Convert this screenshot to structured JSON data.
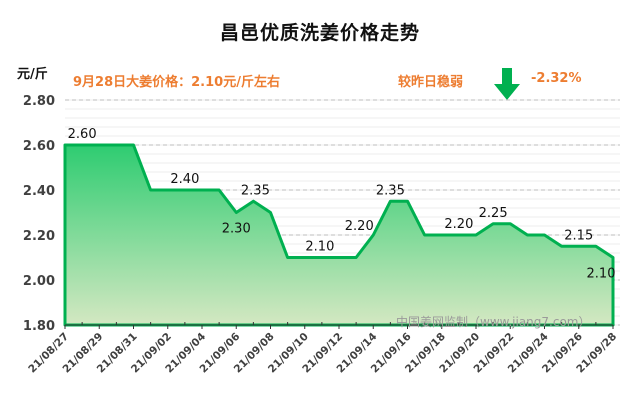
{
  "title": "昌邑优质洗姜价格走势",
  "unit": "元/斤",
  "note_left": "9月28日大姜价格：2.10元/斤左右",
  "note_right": "较昨日稳弱",
  "note_pct": "-2.32%",
  "trend_icon": "down-arrow-icon",
  "watermark": "中国姜网监制（www.jiang7.com）",
  "colors": {
    "line": "#00b050",
    "fill_top": "#2ecc71",
    "fill_bottom": "#d4e8c2",
    "accent": "#ed7d31",
    "arrow": "#00b050"
  },
  "chart_data": {
    "type": "area",
    "title": "昌邑优质洗姜价格走势",
    "xlabel": "",
    "ylabel": "元/斤",
    "ylim": [
      1.8,
      2.8
    ],
    "yticks": [
      "1.80",
      "2.00",
      "2.20",
      "2.40",
      "2.60",
      "2.80"
    ],
    "xtick_labels": [
      "21/08/27",
      "21/08/29",
      "21/08/31",
      "21/09/02",
      "21/09/04",
      "21/09/06",
      "21/09/08",
      "21/09/10",
      "21/09/12",
      "21/09/14",
      "21/09/16",
      "21/09/18",
      "21/09/20",
      "21/09/22",
      "21/09/24",
      "21/09/26",
      "21/09/28"
    ],
    "x": [
      "21/08/27",
      "21/08/28",
      "21/08/29",
      "21/08/30",
      "21/08/31",
      "21/09/01",
      "21/09/02",
      "21/09/03",
      "21/09/04",
      "21/09/05",
      "21/09/06",
      "21/09/07",
      "21/09/08",
      "21/09/09",
      "21/09/10",
      "21/09/11",
      "21/09/12",
      "21/09/13",
      "21/09/14",
      "21/09/15",
      "21/09/16",
      "21/09/17",
      "21/09/18",
      "21/09/19",
      "21/09/20",
      "21/09/21",
      "21/09/22",
      "21/09/23",
      "21/09/24",
      "21/09/25",
      "21/09/26",
      "21/09/27",
      "21/09/28"
    ],
    "values": [
      2.6,
      2.6,
      2.6,
      2.6,
      2.6,
      2.4,
      2.4,
      2.4,
      2.4,
      2.4,
      2.3,
      2.35,
      2.3,
      2.1,
      2.1,
      2.1,
      2.1,
      2.1,
      2.2,
      2.35,
      2.35,
      2.2,
      2.2,
      2.2,
      2.2,
      2.25,
      2.25,
      2.2,
      2.2,
      2.15,
      2.15,
      2.15,
      2.1
    ],
    "annotations": [
      {
        "label": "2.60",
        "index": 1
      },
      {
        "label": "2.40",
        "index": 7
      },
      {
        "label": "2.30",
        "index": 10
      },
      {
        "label": "2.35",
        "index": 11
      },
      {
        "label": "2.10",
        "index": 15
      },
      {
        "label": "2.20",
        "index": 18
      },
      {
        "label": "2.35",
        "index": 19
      },
      {
        "label": "2.20",
        "index": 23
      },
      {
        "label": "2.25",
        "index": 25
      },
      {
        "label": "2.15",
        "index": 30
      },
      {
        "label": "2.10",
        "index": 32
      }
    ],
    "grid": true,
    "legend": "none"
  }
}
